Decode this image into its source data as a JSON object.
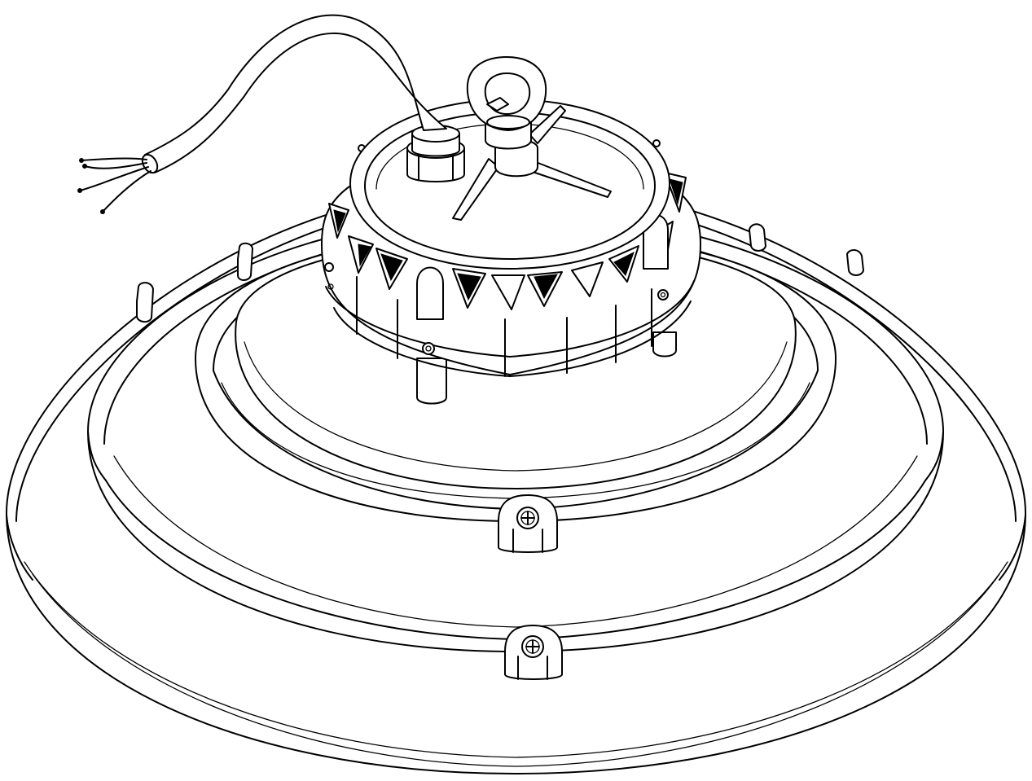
{
  "figure": {
    "background": "#ffffff",
    "line_color": "#000000",
    "subject": "luminaire-line-drawing"
  }
}
